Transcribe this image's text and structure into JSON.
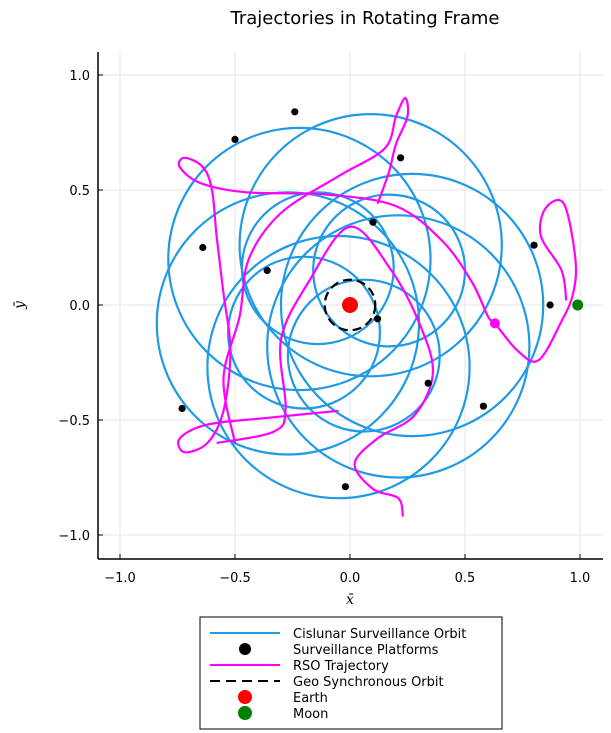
{
  "chart_data": {
    "type": "line",
    "title": "Trajectories in Rotating Frame",
    "xlabel": "x̄",
    "ylabel": "ȳ",
    "xlim": [
      -1.1,
      1.1
    ],
    "ylim": [
      -1.1,
      1.1
    ],
    "xticks": [
      -1.0,
      -0.5,
      0.0,
      0.5,
      1.0
    ],
    "yticks": [
      -1.0,
      -0.5,
      0.0,
      0.5,
      1.0
    ],
    "xtick_labels": [
      "−1.0",
      "−0.5",
      "0.0",
      "0.5",
      "1.0"
    ],
    "ytick_labels": [
      "−1.0",
      "−0.5",
      "0.0",
      "0.5",
      "1.0"
    ],
    "grid": true,
    "legend_position": "bottom-center",
    "colors": {
      "orbit": "#1f9ae6",
      "platforms": "#000000",
      "rso": "#ff00ff",
      "geo": "#000000",
      "earth": "#ff0000",
      "moon": "#008000"
    },
    "series": [
      {
        "name": "Cislunar Surveillance Orbit",
        "kind": "line",
        "circles": [
          {
            "cx": 0.27,
            "cy": 0.0,
            "r": 0.57
          },
          {
            "cx": 0.09,
            "cy": 0.26,
            "r": 0.57
          },
          {
            "cx": -0.22,
            "cy": 0.2,
            "r": 0.57
          },
          {
            "cx": -0.27,
            "cy": -0.08,
            "r": 0.57
          },
          {
            "cx": -0.05,
            "cy": -0.27,
            "r": 0.57
          },
          {
            "cx": 0.21,
            "cy": -0.18,
            "r": 0.57
          },
          {
            "cx": 0.17,
            "cy": 0.15,
            "r": 0.33
          },
          {
            "cx": -0.14,
            "cy": 0.16,
            "r": 0.33
          },
          {
            "cx": -0.2,
            "cy": -0.12,
            "r": 0.33
          },
          {
            "cx": 0.06,
            "cy": -0.22,
            "r": 0.33
          }
        ]
      },
      {
        "name": "Surveillance Platforms",
        "kind": "scatter",
        "points": [
          [
            -0.24,
            0.84
          ],
          [
            -0.5,
            0.72
          ],
          [
            0.22,
            0.64
          ],
          [
            0.1,
            0.36
          ],
          [
            -0.64,
            0.25
          ],
          [
            -0.36,
            0.15
          ],
          [
            0.8,
            0.26
          ],
          [
            0.87,
            0.0
          ],
          [
            0.12,
            -0.06
          ],
          [
            0.34,
            -0.34
          ],
          [
            0.58,
            -0.44
          ],
          [
            -0.73,
            -0.45
          ],
          [
            -0.02,
            -0.79
          ]
        ]
      },
      {
        "name": "RSO Trajectory",
        "kind": "line",
        "points": [
          [
            -0.05,
            -0.46
          ],
          [
            -0.35,
            -0.49
          ],
          [
            -0.62,
            -0.52
          ],
          [
            -0.74,
            -0.58
          ],
          [
            -0.72,
            -0.64
          ],
          [
            -0.62,
            -0.6
          ],
          [
            -0.55,
            -0.46
          ],
          [
            -0.52,
            -0.2
          ],
          [
            -0.55,
            0.05
          ],
          [
            -0.58,
            0.3
          ],
          [
            -0.6,
            0.5
          ],
          [
            -0.64,
            0.6
          ],
          [
            -0.72,
            0.64
          ],
          [
            -0.74,
            0.6
          ],
          [
            -0.65,
            0.53
          ],
          [
            -0.45,
            0.49
          ],
          [
            -0.1,
            0.48
          ],
          [
            0.2,
            0.43
          ],
          [
            0.4,
            0.28
          ],
          [
            0.53,
            0.1
          ],
          [
            0.6,
            -0.05
          ],
          [
            0.63,
            -0.08
          ],
          [
            0.73,
            -0.2
          ],
          [
            0.82,
            -0.24
          ],
          [
            0.92,
            -0.07
          ],
          [
            0.97,
            0.05
          ],
          [
            0.98,
            0.2
          ],
          [
            0.93,
            0.44
          ],
          [
            0.85,
            0.42
          ],
          [
            0.83,
            0.3
          ],
          [
            0.92,
            0.15
          ],
          [
            0.94,
            0.02
          ]
        ],
        "points2": [
          [
            0.23,
            -0.92
          ],
          [
            0.21,
            -0.84
          ],
          [
            0.1,
            -0.8
          ],
          [
            0.02,
            -0.69
          ],
          [
            0.12,
            -0.58
          ],
          [
            0.28,
            -0.48
          ],
          [
            0.36,
            -0.3
          ],
          [
            0.31,
            -0.1
          ],
          [
            0.18,
            0.15
          ],
          [
            0.0,
            0.34
          ],
          [
            -0.18,
            0.1
          ],
          [
            -0.3,
            -0.15
          ],
          [
            -0.28,
            -0.45
          ],
          [
            -0.33,
            -0.55
          ],
          [
            -0.58,
            -0.6
          ]
        ],
        "points3": [
          [
            -0.5,
            -0.6
          ],
          [
            -0.55,
            -0.32
          ],
          [
            -0.48,
            -0.05
          ],
          [
            -0.44,
            0.2
          ],
          [
            -0.3,
            0.4
          ],
          [
            -0.05,
            0.56
          ],
          [
            0.15,
            0.68
          ],
          [
            0.2,
            0.82
          ],
          [
            0.24,
            0.9
          ],
          [
            0.25,
            0.82
          ],
          [
            0.2,
            0.7
          ],
          [
            0.17,
            0.58
          ],
          [
            0.12,
            0.44
          ]
        ],
        "marker": [
          0.63,
          -0.08
        ]
      },
      {
        "name": "Geo Synchronous Orbit",
        "kind": "dashed-circle",
        "circle": {
          "cx": 0.0,
          "cy": 0.0,
          "r": 0.11
        }
      },
      {
        "name": "Earth",
        "kind": "scatter",
        "points": [
          [
            0.0,
            0.0
          ]
        ]
      },
      {
        "name": "Moon",
        "kind": "scatter",
        "points": [
          [
            0.99,
            0.0
          ]
        ]
      }
    ]
  }
}
